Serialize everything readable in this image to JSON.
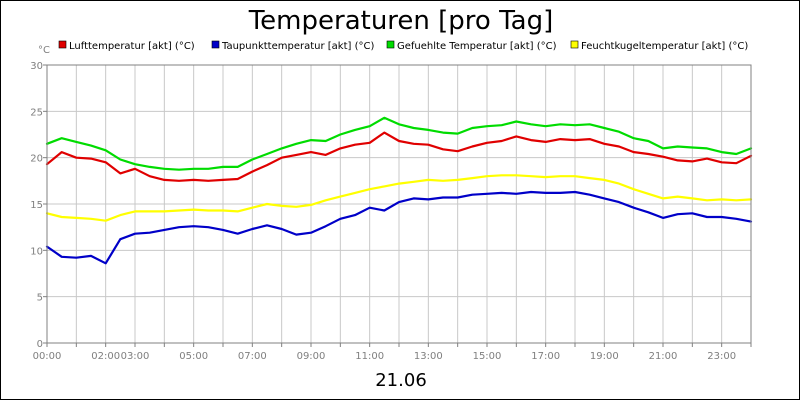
{
  "chart_data": {
    "type": "line",
    "title": "Temperaturen [pro Tag]",
    "ylabel": "°C",
    "xlabel": "21.06",
    "ylim": [
      0,
      30
    ],
    "yticks": [
      0,
      5,
      10,
      15,
      20,
      25,
      30
    ],
    "x_ticks": [
      "00:00",
      "02:00",
      "03:00",
      "05:00",
      "07:00",
      "09:00",
      "11:00",
      "13:00",
      "15:00",
      "17:00",
      "19:00",
      "21:00",
      "23:00"
    ],
    "x_tick_hours": [
      0,
      2,
      3,
      5,
      7,
      9,
      11,
      13,
      15,
      17,
      19,
      21,
      23
    ],
    "x_range_hours": [
      0,
      24
    ],
    "grid": true,
    "legend_position": "top",
    "x_hours": [
      0,
      0.5,
      1,
      1.5,
      2,
      2.5,
      3,
      3.5,
      4,
      4.5,
      5,
      5.5,
      6,
      6.5,
      7,
      7.5,
      8,
      8.5,
      9,
      9.5,
      10,
      10.5,
      11,
      11.5,
      12,
      12.5,
      13,
      13.5,
      14,
      14.5,
      15,
      15.5,
      16,
      16.5,
      17,
      17.5,
      18,
      18.5,
      19,
      19.5,
      20,
      20.5,
      21,
      21.5,
      22,
      22.5,
      23,
      23.5,
      24
    ],
    "series": [
      {
        "name": "Lufttemperatur [akt] (°C)",
        "color": "#e00000",
        "values": [
          19.3,
          20.6,
          20.0,
          19.9,
          19.5,
          18.3,
          18.8,
          18.0,
          17.6,
          17.5,
          17.6,
          17.5,
          17.6,
          17.7,
          18.5,
          19.2,
          20.0,
          20.3,
          20.6,
          20.3,
          21.0,
          21.4,
          21.6,
          22.7,
          21.8,
          21.5,
          21.4,
          20.9,
          20.7,
          21.2,
          21.6,
          21.8,
          22.3,
          21.9,
          21.7,
          22.0,
          21.9,
          22.0,
          21.5,
          21.2,
          20.6,
          20.4,
          20.1,
          19.7,
          19.6,
          19.9,
          19.5,
          19.4,
          20.2
        ]
      },
      {
        "name": "Taupunkttemperatur [akt] (°C)",
        "color": "#0000c8",
        "values": [
          10.4,
          9.3,
          9.2,
          9.4,
          8.6,
          11.2,
          11.8,
          11.9,
          12.2,
          12.5,
          12.6,
          12.5,
          12.2,
          11.8,
          12.3,
          12.7,
          12.3,
          11.7,
          11.9,
          12.6,
          13.4,
          13.8,
          14.6,
          14.3,
          15.2,
          15.6,
          15.5,
          15.7,
          15.7,
          16.0,
          16.1,
          16.2,
          16.1,
          16.3,
          16.2,
          16.2,
          16.3,
          16.0,
          15.6,
          15.2,
          14.6,
          14.1,
          13.5,
          13.9,
          14.0,
          13.6,
          13.6,
          13.4,
          13.1
        ]
      },
      {
        "name": "Gefuehlte Temperatur [akt] (°C)",
        "color": "#00dc00",
        "values": [
          21.5,
          22.1,
          21.7,
          21.3,
          20.8,
          19.8,
          19.3,
          19.0,
          18.8,
          18.7,
          18.8,
          18.8,
          19.0,
          19.0,
          19.8,
          20.4,
          21.0,
          21.5,
          21.9,
          21.8,
          22.5,
          23.0,
          23.4,
          24.3,
          23.6,
          23.2,
          23.0,
          22.7,
          22.6,
          23.2,
          23.4,
          23.5,
          23.9,
          23.6,
          23.4,
          23.6,
          23.5,
          23.6,
          23.2,
          22.8,
          22.1,
          21.8,
          21.0,
          21.2,
          21.1,
          21.0,
          20.6,
          20.4,
          21.0
        ]
      },
      {
        "name": "Feuchtkugeltemperatur [akt] (°C)",
        "color": "#ffff00",
        "values": [
          14.0,
          13.6,
          13.5,
          13.4,
          13.2,
          13.8,
          14.2,
          14.2,
          14.2,
          14.3,
          14.4,
          14.3,
          14.3,
          14.2,
          14.6,
          15.0,
          14.8,
          14.7,
          14.9,
          15.4,
          15.8,
          16.2,
          16.6,
          16.9,
          17.2,
          17.4,
          17.6,
          17.5,
          17.6,
          17.8,
          18.0,
          18.1,
          18.1,
          18.0,
          17.9,
          18.0,
          18.0,
          17.8,
          17.6,
          17.2,
          16.6,
          16.1,
          15.6,
          15.8,
          15.6,
          15.4,
          15.5,
          15.4,
          15.5
        ]
      }
    ]
  }
}
